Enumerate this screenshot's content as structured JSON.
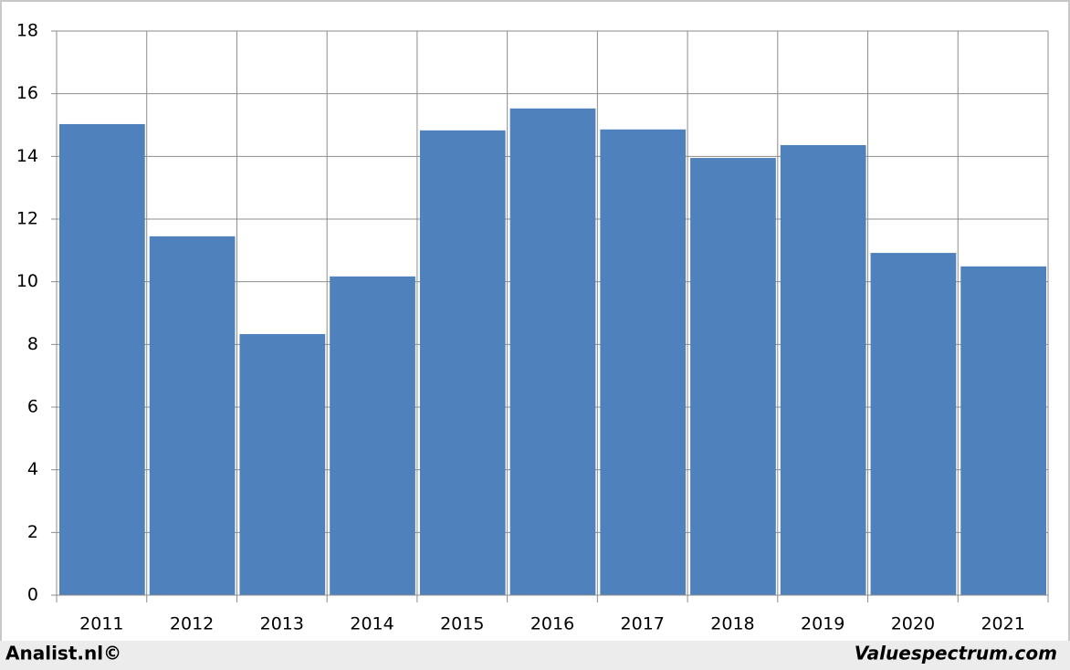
{
  "chart_data": {
    "type": "bar",
    "categories": [
      "2011",
      "2012",
      "2013",
      "2014",
      "2015",
      "2016",
      "2017",
      "2018",
      "2019",
      "2020",
      "2021"
    ],
    "values": [
      15.03,
      11.45,
      8.33,
      10.17,
      14.83,
      15.53,
      14.86,
      13.95,
      14.36,
      10.92,
      10.49
    ],
    "color": "#4f81bd",
    "ylim": [
      0,
      18
    ],
    "yticks": [
      0,
      2,
      4,
      6,
      8,
      10,
      12,
      14,
      16,
      18
    ],
    "grid": true,
    "annotations": [
      "Analist.nl©",
      "Valuespectrum.com"
    ]
  }
}
